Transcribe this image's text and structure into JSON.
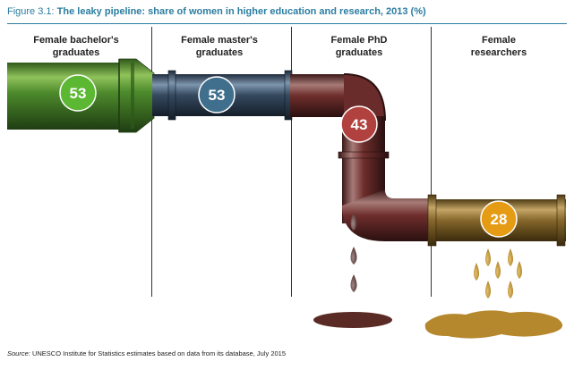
{
  "figure": {
    "label": "Figure 3.1:",
    "title": "The leaky pipeline: share of women in higher education and research, 2013 (%)"
  },
  "chart_data": {
    "type": "bar",
    "title": "The leaky pipeline: share of women in higher education and research, 2013 (%)",
    "categories": [
      [
        "Female bachelor's",
        "graduates"
      ],
      [
        "Female master's",
        "graduates"
      ],
      [
        "Female PhD",
        "graduates"
      ],
      [
        "Female",
        "researchers"
      ]
    ],
    "values": [
      53,
      53,
      43,
      28
    ],
    "unit": "%",
    "colors": [
      "#5cb832",
      "#3f6f8c",
      "#b0413e",
      "#e59b14"
    ]
  },
  "source": {
    "label": "Source:",
    "text": "UNESCO Institute for Statistics estimates based on data from its database, July 2015"
  }
}
